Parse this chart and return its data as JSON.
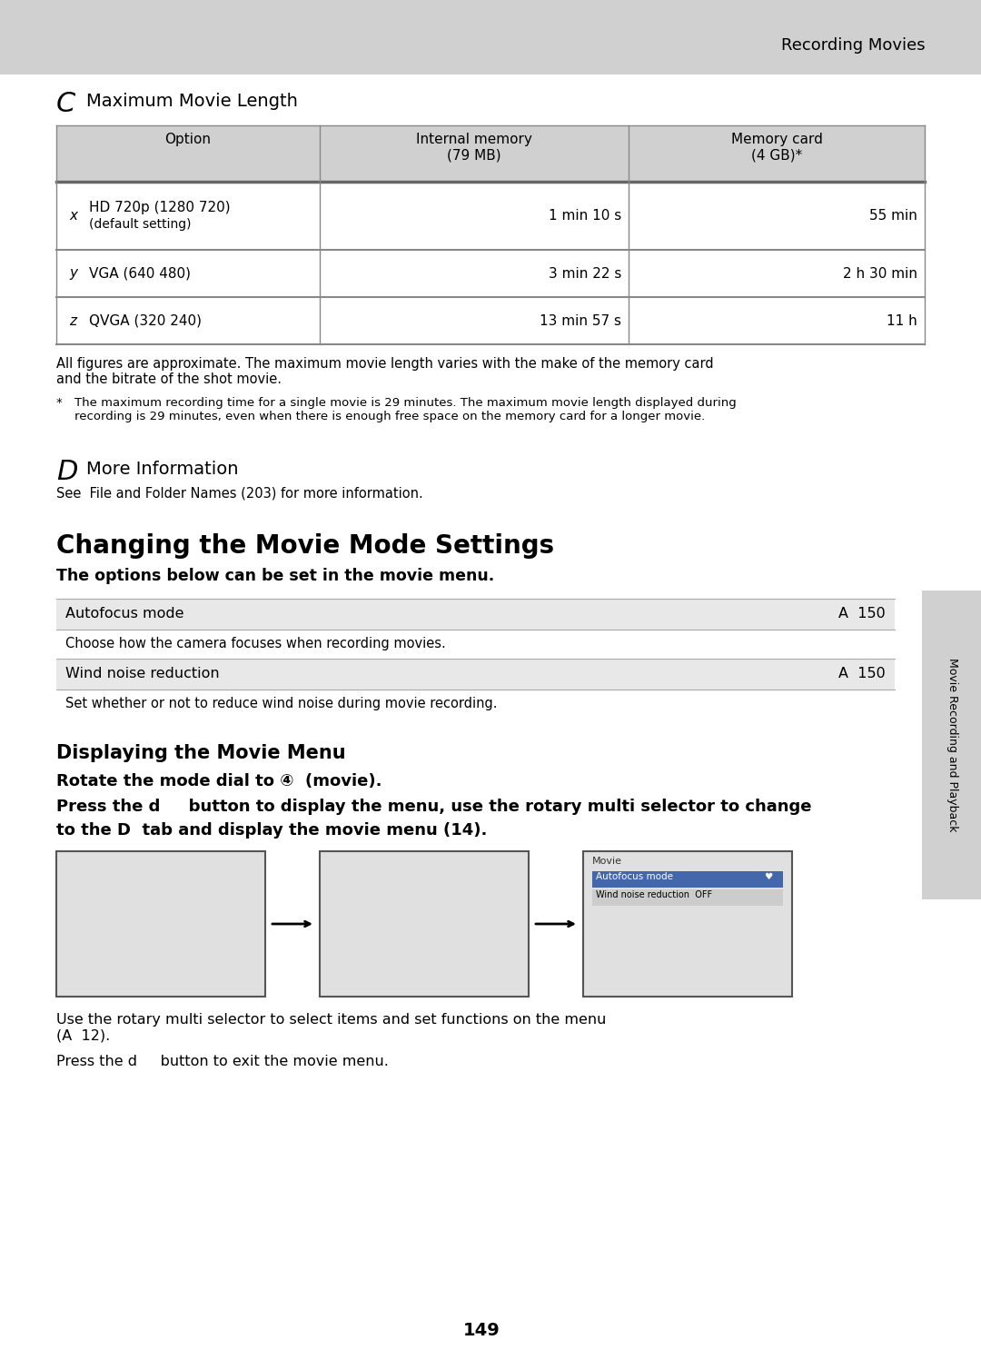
{
  "page_header_bg": "#d0d0d0",
  "page_header_text": "Recording Movies",
  "page_number": "149",
  "bg_color": "#ffffff",
  "header_bar_bg": "#d0d0d0",
  "section_c_letter": "C",
  "section_c_title": "Maximum Movie Length",
  "table_header_bg": "#d0d0d0",
  "table_row_bg": "#ffffff",
  "table_border_color": "#888888",
  "table_col1_header": "Option",
  "table_col2_header": "Internal memory\n(79 MB)",
  "table_col3_header": "Memory card\n(4 GB)*",
  "table_rows": [
    {
      "letter": "x",
      "option": "HD 720p (1280 720)\n(default setting)",
      "col2": "1 min 10 s",
      "col3": "55 min"
    },
    {
      "letter": "y",
      "option": "VGA (640 480)",
      "col2": "3 min 22 s",
      "col3": "2 h 30 min"
    },
    {
      "letter": "z",
      "option": "QVGA (320 240)",
      "col2": "13 min 57 s",
      "col3": "11 h"
    }
  ],
  "footnote1": "All figures are approximate. The maximum movie length varies with the make of the memory card\nand the bitrate of the shot movie.",
  "footnote2": "The maximum recording time for a single movie is 29 minutes. The maximum movie length displayed during\nrecording is 29 minutes, even when there is enough free space on the memory card for a longer movie.",
  "section_d_letter": "D",
  "section_d_title": "More Information",
  "section_d_text": "See  File and Folder Names (203) for more information.",
  "section_main_title": "Changing the Movie Mode Settings",
  "section_main_subtitle": "The options below can be set in the movie menu.",
  "menu_rows": [
    {
      "label": "Autofocus mode",
      "ref": "A  150"
    },
    {
      "desc": "Choose how the camera focuses when recording movies."
    },
    {
      "label": "Wind noise reduction",
      "ref": "A  150"
    },
    {
      "desc": "Set whether or not to reduce wind noise during movie recording."
    }
  ],
  "menu_row_bg": "#e8e8e8",
  "menu_desc_bg": "#ffffff",
  "section_display_title": "Displaying the Movie Menu",
  "display_line1": "Rotate the mode dial to ④  (movie).",
  "display_line2": "Press the d     button to display the menu, use the rotary multi selector to change",
  "display_line3": "to the D  tab and display the movie menu (14).",
  "sidebar_text": "Movie Recording and Playback",
  "sidebar_bg": "#d0d0d0",
  "bottom_text1": "Use the rotary multi selector to select items and set functions on the menu\n(A  12).",
  "bottom_text2": "Press the d     button to exit the movie menu."
}
